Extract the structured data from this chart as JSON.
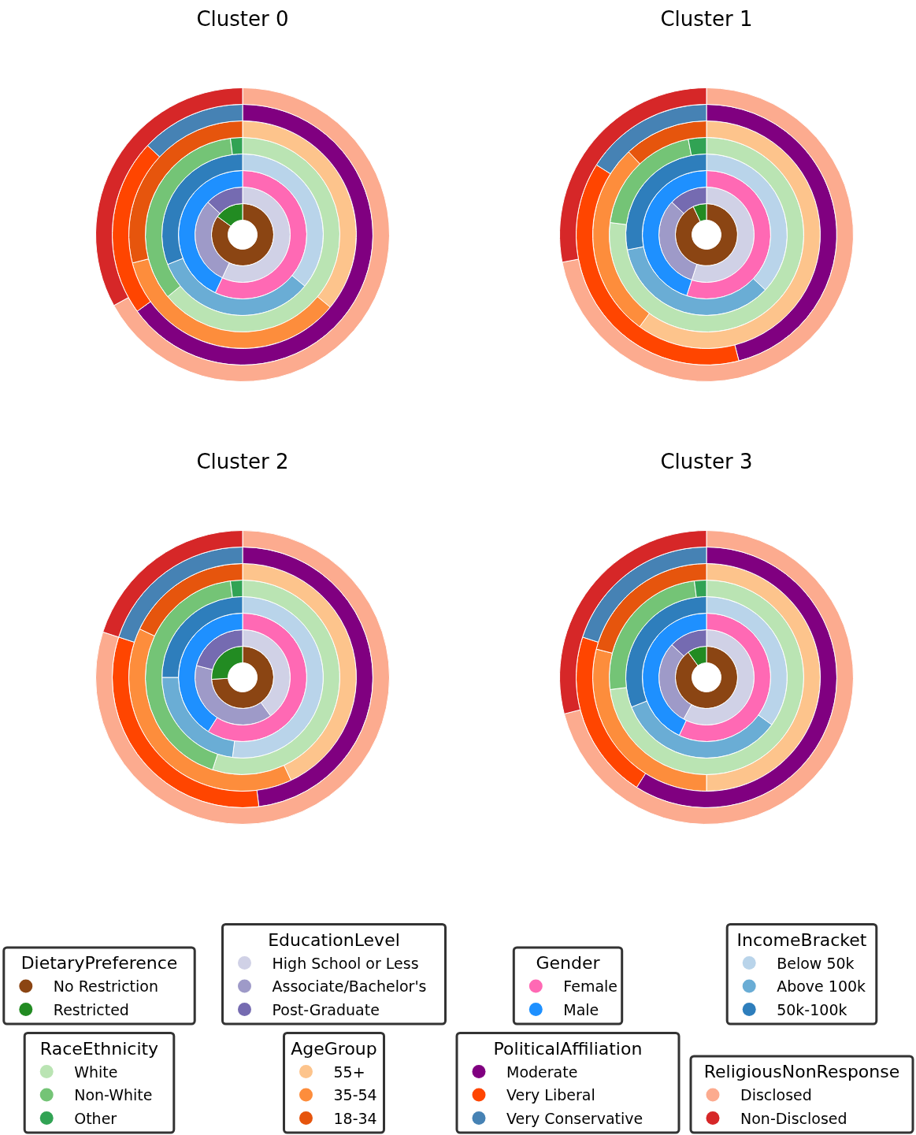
{
  "chart_data": [
    {
      "type": "donut",
      "title": "Cluster 0",
      "legend": "bottom",
      "legend_title": "DietaryPreference",
      "categories": [
        "No Restriction",
        "Restricted"
      ],
      "colors": [
        "#8b4513",
        "#228b22"
      ],
      "values": [
        85,
        15
      ]
    },
    {
      "type": "donut",
      "legend": "bottom",
      "legend_title": "EducationLevel",
      "categories": [
        "High School or Less",
        "Associate/Bachelor's",
        "Post-Graduate"
      ],
      "colors": [
        "#d0d1e6",
        "#9e9ac8",
        "#756bb1"
      ],
      "values": [
        57,
        30,
        13
      ]
    },
    {
      "type": "donut",
      "legend": "bottom",
      "legend_title": "Gender",
      "categories": [
        "Female",
        "Male"
      ],
      "colors": [
        "#ff69b4",
        "#1e90ff"
      ],
      "values": [
        57,
        43
      ]
    },
    {
      "type": "donut",
      "legend": "bottom",
      "legend_title": "IncomeBracket",
      "categories": [
        "Below 50k",
        "Above 100k",
        "50k-100k"
      ],
      "colors": [
        "#b9d4ea",
        "#6aadd5",
        "#2e7ebc"
      ],
      "values": [
        36,
        33,
        31
      ]
    },
    {
      "type": "donut",
      "legend": "bottom",
      "legend_title": "RaceEthnicity",
      "categories": [
        "White",
        "Non-White",
        "Other"
      ],
      "colors": [
        "#bae4b3",
        "#74c476",
        "#31a354"
      ],
      "values": [
        64,
        34,
        2
      ]
    },
    {
      "type": "donut",
      "legend": "bottom",
      "legend_title": "AgeGroup",
      "categories": [
        "55+",
        "35-54",
        "18-34"
      ],
      "colors": [
        "#fdc48c",
        "#fd8d3c",
        "#e6550d"
      ],
      "values": [
        36,
        35,
        29
      ]
    },
    {
      "type": "donut",
      "legend": "bottom",
      "legend_title": "PoliticalAffiliation",
      "categories": [
        "Moderate",
        "Very Liberal",
        "Very Conservative"
      ],
      "colors": [
        "#800080",
        "#ff4500",
        "#4682b4"
      ],
      "values": [
        65,
        22,
        13
      ]
    },
    {
      "type": "donut",
      "legend": "bottom",
      "legend_title": "ReligiousNonResponse",
      "categories": [
        "Disclosed",
        "Non-Disclosed"
      ],
      "colors": [
        "#fcab8f",
        "#d62728"
      ],
      "values": [
        67,
        33
      ]
    },
    {
      "type": "donut",
      "title": "Cluster 1",
      "colors": [
        "#8b4513",
        "#228b22"
      ],
      "values": [
        93,
        7
      ]
    },
    {
      "type": "donut",
      "colors": [
        "#d0d1e6",
        "#9e9ac8",
        "#756bb1"
      ],
      "values": [
        55,
        32,
        13
      ]
    },
    {
      "type": "donut",
      "colors": [
        "#ff69b4",
        "#1e90ff"
      ],
      "values": [
        55,
        45
      ]
    },
    {
      "type": "donut",
      "colors": [
        "#b9d4ea",
        "#6aadd5",
        "#2e7ebc"
      ],
      "values": [
        37,
        35,
        28
      ]
    },
    {
      "type": "donut",
      "colors": [
        "#bae4b3",
        "#74c476",
        "#31a354"
      ],
      "values": [
        77,
        20,
        3
      ]
    },
    {
      "type": "donut",
      "colors": [
        "#fdc48c",
        "#fd8d3c",
        "#e6550d"
      ],
      "values": [
        60,
        28,
        12
      ]
    },
    {
      "type": "donut",
      "colors": [
        "#800080",
        "#ff4500",
        "#4682b4"
      ],
      "values": [
        46,
        38,
        16
      ]
    },
    {
      "type": "donut",
      "colors": [
        "#fcab8f",
        "#d62728"
      ],
      "values": [
        72,
        28
      ]
    },
    {
      "type": "donut",
      "title": "Cluster 2",
      "colors": [
        "#8b4513",
        "#228b22"
      ],
      "values": [
        74,
        26
      ]
    },
    {
      "type": "donut",
      "colors": [
        "#d0d1e6",
        "#9e9ac8",
        "#756bb1"
      ],
      "values": [
        40,
        39,
        21
      ]
    },
    {
      "type": "donut",
      "colors": [
        "#ff69b4",
        "#1e90ff"
      ],
      "values": [
        59,
        41
      ]
    },
    {
      "type": "donut",
      "colors": [
        "#b9d4ea",
        "#6aadd5",
        "#2e7ebc"
      ],
      "values": [
        52,
        23,
        25
      ]
    },
    {
      "type": "donut",
      "colors": [
        "#bae4b3",
        "#74c476",
        "#31a354"
      ],
      "values": [
        55,
        43,
        2
      ]
    },
    {
      "type": "donut",
      "colors": [
        "#fdc48c",
        "#fd8d3c",
        "#e6550d"
      ],
      "values": [
        43,
        39,
        18
      ]
    },
    {
      "type": "donut",
      "colors": [
        "#800080",
        "#ff4500",
        "#4682b4"
      ],
      "values": [
        48,
        32,
        20
      ]
    },
    {
      "type": "donut",
      "colors": [
        "#fcab8f",
        "#d62728"
      ],
      "values": [
        80,
        20
      ]
    },
    {
      "type": "donut",
      "title": "Cluster 3",
      "colors": [
        "#8b4513",
        "#228b22"
      ],
      "values": [
        90,
        10
      ]
    },
    {
      "type": "donut",
      "colors": [
        "#d0d1e6",
        "#9e9ac8",
        "#756bb1"
      ],
      "values": [
        58,
        29,
        13
      ]
    },
    {
      "type": "donut",
      "colors": [
        "#ff69b4",
        "#1e90ff"
      ],
      "values": [
        57,
        43
      ]
    },
    {
      "type": "donut",
      "colors": [
        "#b9d4ea",
        "#6aadd5",
        "#2e7ebc"
      ],
      "values": [
        35,
        34,
        31
      ]
    },
    {
      "type": "donut",
      "colors": [
        "#bae4b3",
        "#74c476",
        "#31a354"
      ],
      "values": [
        73,
        25,
        2
      ]
    },
    {
      "type": "donut",
      "colors": [
        "#fdc48c",
        "#fd8d3c",
        "#e6550d"
      ],
      "values": [
        50,
        29,
        21
      ]
    },
    {
      "type": "donut",
      "colors": [
        "#800080",
        "#ff4500",
        "#4682b4"
      ],
      "values": [
        59,
        21,
        20
      ]
    },
    {
      "type": "donut",
      "colors": [
        "#fcab8f",
        "#d62728"
      ],
      "values": [
        71,
        29
      ]
    }
  ]
}
